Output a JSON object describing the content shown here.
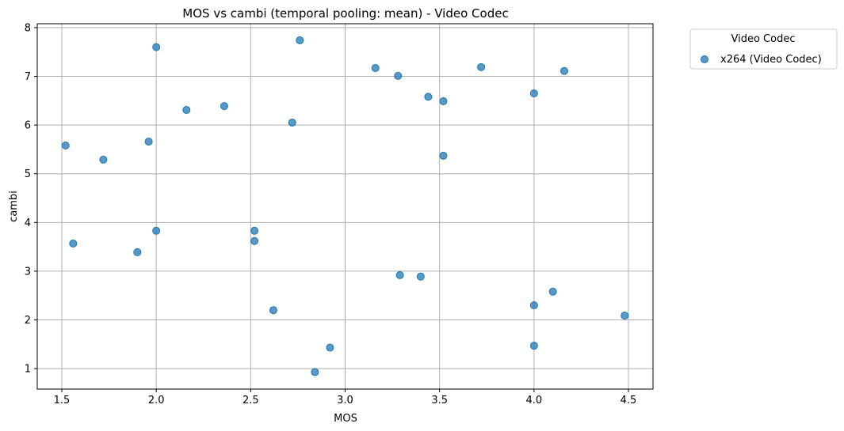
{
  "chart_data": {
    "type": "scatter",
    "title": "MOS vs cambi (temporal pooling: mean) - Video Codec",
    "xlabel": "MOS",
    "ylabel": "cambi",
    "xlim": [
      1.37,
      4.63
    ],
    "ylim": [
      0.58,
      8.08
    ],
    "xticks": [
      "1.5",
      "2.0",
      "2.5",
      "3.0",
      "3.5",
      "4.0",
      "4.5"
    ],
    "yticks": [
      "1",
      "2",
      "3",
      "4",
      "5",
      "6",
      "7",
      "8"
    ],
    "grid": true,
    "legend": {
      "title": "Video Codec",
      "placement": "outside-right"
    },
    "series": [
      {
        "name": "x264 (Video Codec)",
        "color": "#1f77b4",
        "x": [
          2.0,
          2.76,
          3.16,
          3.28,
          3.72,
          4.16,
          3.44,
          3.52,
          4.0,
          2.16,
          2.36,
          2.72,
          1.52,
          1.96,
          1.72,
          3.52,
          2.0,
          2.52,
          2.52,
          1.56,
          1.9,
          3.29,
          3.4,
          4.1,
          4.0,
          2.62,
          4.48,
          2.92,
          4.0,
          2.84
        ],
        "y": [
          7.6,
          7.74,
          7.17,
          7.01,
          7.19,
          7.11,
          6.58,
          6.49,
          6.65,
          6.31,
          6.39,
          6.05,
          5.58,
          5.66,
          5.29,
          5.37,
          3.83,
          3.83,
          3.62,
          3.57,
          3.39,
          2.92,
          2.89,
          2.58,
          2.3,
          2.2,
          2.09,
          1.43,
          1.47,
          0.93
        ]
      }
    ]
  }
}
